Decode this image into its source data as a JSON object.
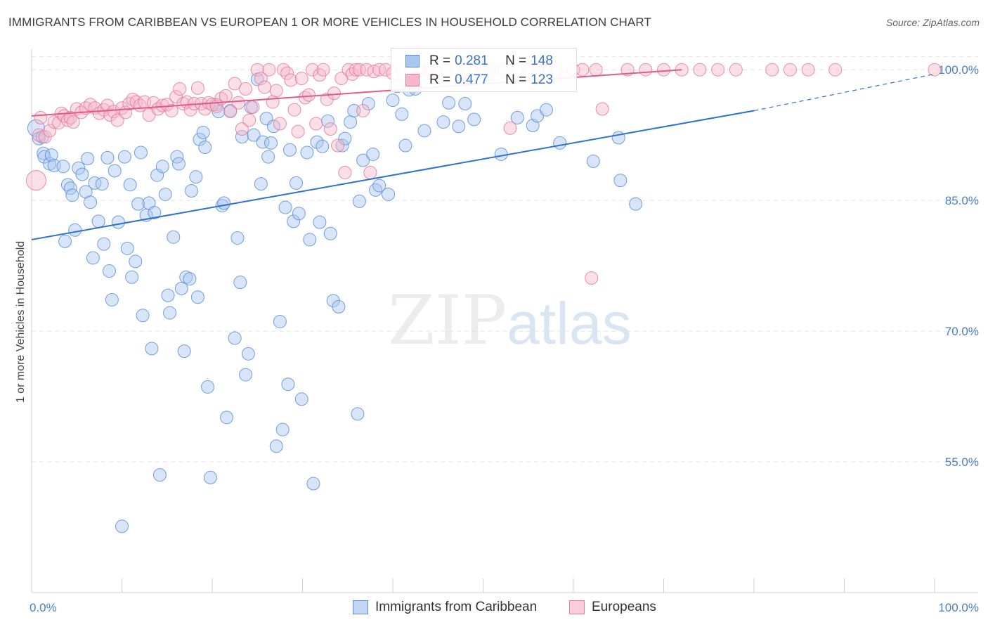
{
  "title": "IMMIGRANTS FROM CARIBBEAN VS EUROPEAN 1 OR MORE VEHICLES IN HOUSEHOLD CORRELATION CHART",
  "source": "Source: ZipAtlas.com",
  "watermark": {
    "zip": "ZIP",
    "atlas": "atlas"
  },
  "colors": {
    "blue_fill": "#a9c6ef",
    "blue_stroke": "#5b8ed6",
    "blue_line": "#2e6fcf",
    "pink_fill": "#f6b8c9",
    "pink_stroke": "#e37a9a",
    "pink_line": "#e05a8a",
    "grid": "#e3e3e3",
    "tick_label": "#4a7fc9"
  },
  "legend": {
    "rows": [
      {
        "r_label": "R =",
        "r_value": "0.281",
        "n_label": "N =",
        "n_value": "148"
      },
      {
        "r_label": "R =",
        "r_value": "0.477",
        "n_label": "N =",
        "n_value": "123"
      }
    ]
  },
  "bottom_legend": [
    "Immigrants from Caribbean",
    "Europeans"
  ],
  "chart_data": {
    "type": "scatter",
    "title": "IMMIGRANTS FROM CARIBBEAN VS EUROPEAN 1 OR MORE VEHICLES IN HOUSEHOLD CORRELATION CHART",
    "xlabel": "",
    "ylabel": "1 or more Vehicles in Household",
    "xlim": [
      0,
      100
    ],
    "ylim": [
      40,
      103
    ],
    "x_tick_labels": [
      "0.0%",
      "100.0%"
    ],
    "y_tick_labels": [
      "100.0%",
      "85.0%",
      "70.0%",
      "55.0%"
    ],
    "y_ticks": [
      100,
      85,
      70,
      55
    ],
    "grid": true,
    "legend_position": "top-center",
    "series": [
      {
        "name": "Immigrants from Caribbean",
        "color": "#a9c6ef",
        "trendline": {
          "x": [
            0,
            80
          ],
          "y": [
            80.5,
            95.3
          ],
          "dashed_extension_to": [
            100,
            99.5
          ]
        },
        "points": [
          [
            0.5,
            93.3
          ],
          [
            0.8,
            92.1
          ],
          [
            1.2,
            92.3
          ],
          [
            1.3,
            90.4
          ],
          [
            1.4,
            90.0
          ],
          [
            2.0,
            89.2
          ],
          [
            2.2,
            90.2
          ],
          [
            2.5,
            89.0
          ],
          [
            3.7,
            80.3
          ],
          [
            3.5,
            88.9
          ],
          [
            4.0,
            86.8
          ],
          [
            4.3,
            86.4
          ],
          [
            4.5,
            85.6
          ],
          [
            4.8,
            81.6
          ],
          [
            5.2,
            88.7
          ],
          [
            5.6,
            88.0
          ],
          [
            6.0,
            86.0
          ],
          [
            6.2,
            89.8
          ],
          [
            6.5,
            84.8
          ],
          [
            6.8,
            78.4
          ],
          [
            7.0,
            87.0
          ],
          [
            7.4,
            82.6
          ],
          [
            7.8,
            86.9
          ],
          [
            8.0,
            80.0
          ],
          [
            8.4,
            89.9
          ],
          [
            8.6,
            76.9
          ],
          [
            8.9,
            73.6
          ],
          [
            9.2,
            88.4
          ],
          [
            9.6,
            82.5
          ],
          [
            10.0,
            47.6
          ],
          [
            10.3,
            90.0
          ],
          [
            10.6,
            79.5
          ],
          [
            10.9,
            86.8
          ],
          [
            11.1,
            76.2
          ],
          [
            11.5,
            78.0
          ],
          [
            11.8,
            84.6
          ],
          [
            12.1,
            90.5
          ],
          [
            12.3,
            71.8
          ],
          [
            12.7,
            83.3
          ],
          [
            13.0,
            84.7
          ],
          [
            13.3,
            68.0
          ],
          [
            13.6,
            83.6
          ],
          [
            13.9,
            87.9
          ],
          [
            14.2,
            53.5
          ],
          [
            14.5,
            88.9
          ],
          [
            14.8,
            85.7
          ],
          [
            15.1,
            74.1
          ],
          [
            15.3,
            72.1
          ],
          [
            15.7,
            80.8
          ],
          [
            16.1,
            90.0
          ],
          [
            16.3,
            89.2
          ],
          [
            16.6,
            74.9
          ],
          [
            16.9,
            67.7
          ],
          [
            17.1,
            76.2
          ],
          [
            17.5,
            76.0
          ],
          [
            17.7,
            86.1
          ],
          [
            18.2,
            87.7
          ],
          [
            18.4,
            73.9
          ],
          [
            18.6,
            92.0
          ],
          [
            19.0,
            92.8
          ],
          [
            19.2,
            91.1
          ],
          [
            19.5,
            63.6
          ],
          [
            19.8,
            53.2
          ],
          [
            20.4,
            96.0
          ],
          [
            20.7,
            95.2
          ],
          [
            21.1,
            84.4
          ],
          [
            21.3,
            84.7
          ],
          [
            21.6,
            60.1
          ],
          [
            22.0,
            95.3
          ],
          [
            22.5,
            69.2
          ],
          [
            22.8,
            80.7
          ],
          [
            23.1,
            75.6
          ],
          [
            23.3,
            92.3
          ],
          [
            23.7,
            65.0
          ],
          [
            24.0,
            67.4
          ],
          [
            24.3,
            95.7
          ],
          [
            24.6,
            92.5
          ],
          [
            25.0,
            98.9
          ],
          [
            25.4,
            86.9
          ],
          [
            25.6,
            91.7
          ],
          [
            26.0,
            94.4
          ],
          [
            26.2,
            90.0
          ],
          [
            26.5,
            91.6
          ],
          [
            26.8,
            93.5
          ],
          [
            27.1,
            56.8
          ],
          [
            27.5,
            71.1
          ],
          [
            27.8,
            58.7
          ],
          [
            28.1,
            84.2
          ],
          [
            28.4,
            63.9
          ],
          [
            28.6,
            90.8
          ],
          [
            29.0,
            82.6
          ],
          [
            29.3,
            87.0
          ],
          [
            29.6,
            83.5
          ],
          [
            29.9,
            62.2
          ],
          [
            30.5,
            90.5
          ],
          [
            30.8,
            80.5
          ],
          [
            31.2,
            52.5
          ],
          [
            31.6,
            91.7
          ],
          [
            31.9,
            82.5
          ],
          [
            32.2,
            91.2
          ],
          [
            32.8,
            94.1
          ],
          [
            33.1,
            81.2
          ],
          [
            33.4,
            73.5
          ],
          [
            34.0,
            72.8
          ],
          [
            34.4,
            91.3
          ],
          [
            34.7,
            92.1
          ],
          [
            35.3,
            94.0
          ],
          [
            35.7,
            95.3
          ],
          [
            36.1,
            60.5
          ],
          [
            36.3,
            84.9
          ],
          [
            36.7,
            89.6
          ],
          [
            37.3,
            96.1
          ],
          [
            37.8,
            90.3
          ],
          [
            38.1,
            86.2
          ],
          [
            38.5,
            86.7
          ],
          [
            39.5,
            85.7
          ],
          [
            40.0,
            96.5
          ],
          [
            40.5,
            98.1
          ],
          [
            41.0,
            94.9
          ],
          [
            41.4,
            91.3
          ],
          [
            41.8,
            97.7
          ],
          [
            42.5,
            97.8
          ],
          [
            43.5,
            93.0
          ],
          [
            44.0,
            99.4
          ],
          [
            45.6,
            94.0
          ],
          [
            46.2,
            96.2
          ],
          [
            47.3,
            93.5
          ],
          [
            48.0,
            96.1
          ],
          [
            49.0,
            94.3
          ],
          [
            50.5,
            99.5
          ],
          [
            52.0,
            90.3
          ],
          [
            53.2,
            99.0
          ],
          [
            53.8,
            94.5
          ],
          [
            55.5,
            93.6
          ],
          [
            56.0,
            94.7
          ],
          [
            57.0,
            95.4
          ],
          [
            58.5,
            91.6
          ],
          [
            62.2,
            89.5
          ],
          [
            65.0,
            92.2
          ],
          [
            65.2,
            87.3
          ],
          [
            66.9,
            84.6
          ]
        ]
      },
      {
        "name": "Europeans",
        "color": "#f6b8c9",
        "trendline": {
          "x": [
            0,
            72
          ],
          "y": [
            94.7,
            100.0
          ]
        },
        "points": [
          [
            0.5,
            87.3
          ],
          [
            0.8,
            92.5
          ],
          [
            1.0,
            94.5
          ],
          [
            1.5,
            92.3
          ],
          [
            2.0,
            93.0
          ],
          [
            2.5,
            94.0
          ],
          [
            3.0,
            93.9
          ],
          [
            3.3,
            95.0
          ],
          [
            3.6,
            94.7
          ],
          [
            4.0,
            94.2
          ],
          [
            4.3,
            94.5
          ],
          [
            4.6,
            94.0
          ],
          [
            5.0,
            95.5
          ],
          [
            5.5,
            95.1
          ],
          [
            6.0,
            95.6
          ],
          [
            6.5,
            96.0
          ],
          [
            7.0,
            95.6
          ],
          [
            7.5,
            95.0
          ],
          [
            8.0,
            95.4
          ],
          [
            8.4,
            95.9
          ],
          [
            8.7,
            94.8
          ],
          [
            9.1,
            95.2
          ],
          [
            9.5,
            94.2
          ],
          [
            10.0,
            95.6
          ],
          [
            10.4,
            95.1
          ],
          [
            10.8,
            96.1
          ],
          [
            11.2,
            96.6
          ],
          [
            11.6,
            96.3
          ],
          [
            12.0,
            95.9
          ],
          [
            12.5,
            96.3
          ],
          [
            13.0,
            94.8
          ],
          [
            13.5,
            96.2
          ],
          [
            14.0,
            95.5
          ],
          [
            14.5,
            95.9
          ],
          [
            15.0,
            96.0
          ],
          [
            15.5,
            95.3
          ],
          [
            16.0,
            96.9
          ],
          [
            16.4,
            97.8
          ],
          [
            16.8,
            96.1
          ],
          [
            17.2,
            96.3
          ],
          [
            17.6,
            95.4
          ],
          [
            18.0,
            96.1
          ],
          [
            18.4,
            97.9
          ],
          [
            18.8,
            96.1
          ],
          [
            19.2,
            95.5
          ],
          [
            19.6,
            96.2
          ],
          [
            20.0,
            96.0
          ],
          [
            20.5,
            95.8
          ],
          [
            21.0,
            96.7
          ],
          [
            21.5,
            97.0
          ],
          [
            22.0,
            95.2
          ],
          [
            22.5,
            98.4
          ],
          [
            22.9,
            96.2
          ],
          [
            23.3,
            93.2
          ],
          [
            23.7,
            97.8
          ],
          [
            24.1,
            94.2
          ],
          [
            24.5,
            95.7
          ],
          [
            25.0,
            100.0
          ],
          [
            25.4,
            99.0
          ],
          [
            25.8,
            98.0
          ],
          [
            26.3,
            100.0
          ],
          [
            26.7,
            96.3
          ],
          [
            27.1,
            97.6
          ],
          [
            27.5,
            93.8
          ],
          [
            27.9,
            100.0
          ],
          [
            28.3,
            99.6
          ],
          [
            28.7,
            98.8
          ],
          [
            29.1,
            95.4
          ],
          [
            29.5,
            92.9
          ],
          [
            29.9,
            99.0
          ],
          [
            30.3,
            96.8
          ],
          [
            30.7,
            97.1
          ],
          [
            31.1,
            100.0
          ],
          [
            31.5,
            93.8
          ],
          [
            31.9,
            99.4
          ],
          [
            32.3,
            100.0
          ],
          [
            32.7,
            96.6
          ],
          [
            33.1,
            93.2
          ],
          [
            33.5,
            97.3
          ],
          [
            33.9,
            91.3
          ],
          [
            34.3,
            99.0
          ],
          [
            34.7,
            88.2
          ],
          [
            35.1,
            100.0
          ],
          [
            35.5,
            99.5
          ],
          [
            35.9,
            100.0
          ],
          [
            36.3,
            100.0
          ],
          [
            36.7,
            95.3
          ],
          [
            37.1,
            100.0
          ],
          [
            37.5,
            88.2
          ],
          [
            37.9,
            99.8
          ],
          [
            38.5,
            100.0
          ],
          [
            39.2,
            100.0
          ],
          [
            40.0,
            99.6
          ],
          [
            41.0,
            100.0
          ],
          [
            42.0,
            100.0
          ],
          [
            43.0,
            100.0
          ],
          [
            44.0,
            100.0
          ],
          [
            45.0,
            99.6
          ],
          [
            46.0,
            100.0
          ],
          [
            47.0,
            100.0
          ],
          [
            48.0,
            100.0
          ],
          [
            49.0,
            100.0
          ],
          [
            50.0,
            100.0
          ],
          [
            51.0,
            100.0
          ],
          [
            52.0,
            100.0
          ],
          [
            53.0,
            93.3
          ],
          [
            54.0,
            100.0
          ],
          [
            55.0,
            100.0
          ],
          [
            56.0,
            100.0
          ],
          [
            57.0,
            100.0
          ],
          [
            58.0,
            100.0
          ],
          [
            59.0,
            99.0
          ],
          [
            60.0,
            100.0
          ],
          [
            61.0,
            100.0
          ],
          [
            62.0,
            76.1
          ],
          [
            62.5,
            100.0
          ],
          [
            63.2,
            95.5
          ],
          [
            66.0,
            100.0
          ],
          [
            68.0,
            100.0
          ],
          [
            70.0,
            100.0
          ],
          [
            72.0,
            100.0
          ],
          [
            74.0,
            100.0
          ],
          [
            76.0,
            100.0
          ],
          [
            78.0,
            100.0
          ],
          [
            82.0,
            100.0
          ],
          [
            84.0,
            100.0
          ],
          [
            86.0,
            100.0
          ],
          [
            89.0,
            100.0
          ],
          [
            100.0,
            100.0
          ]
        ]
      }
    ]
  }
}
